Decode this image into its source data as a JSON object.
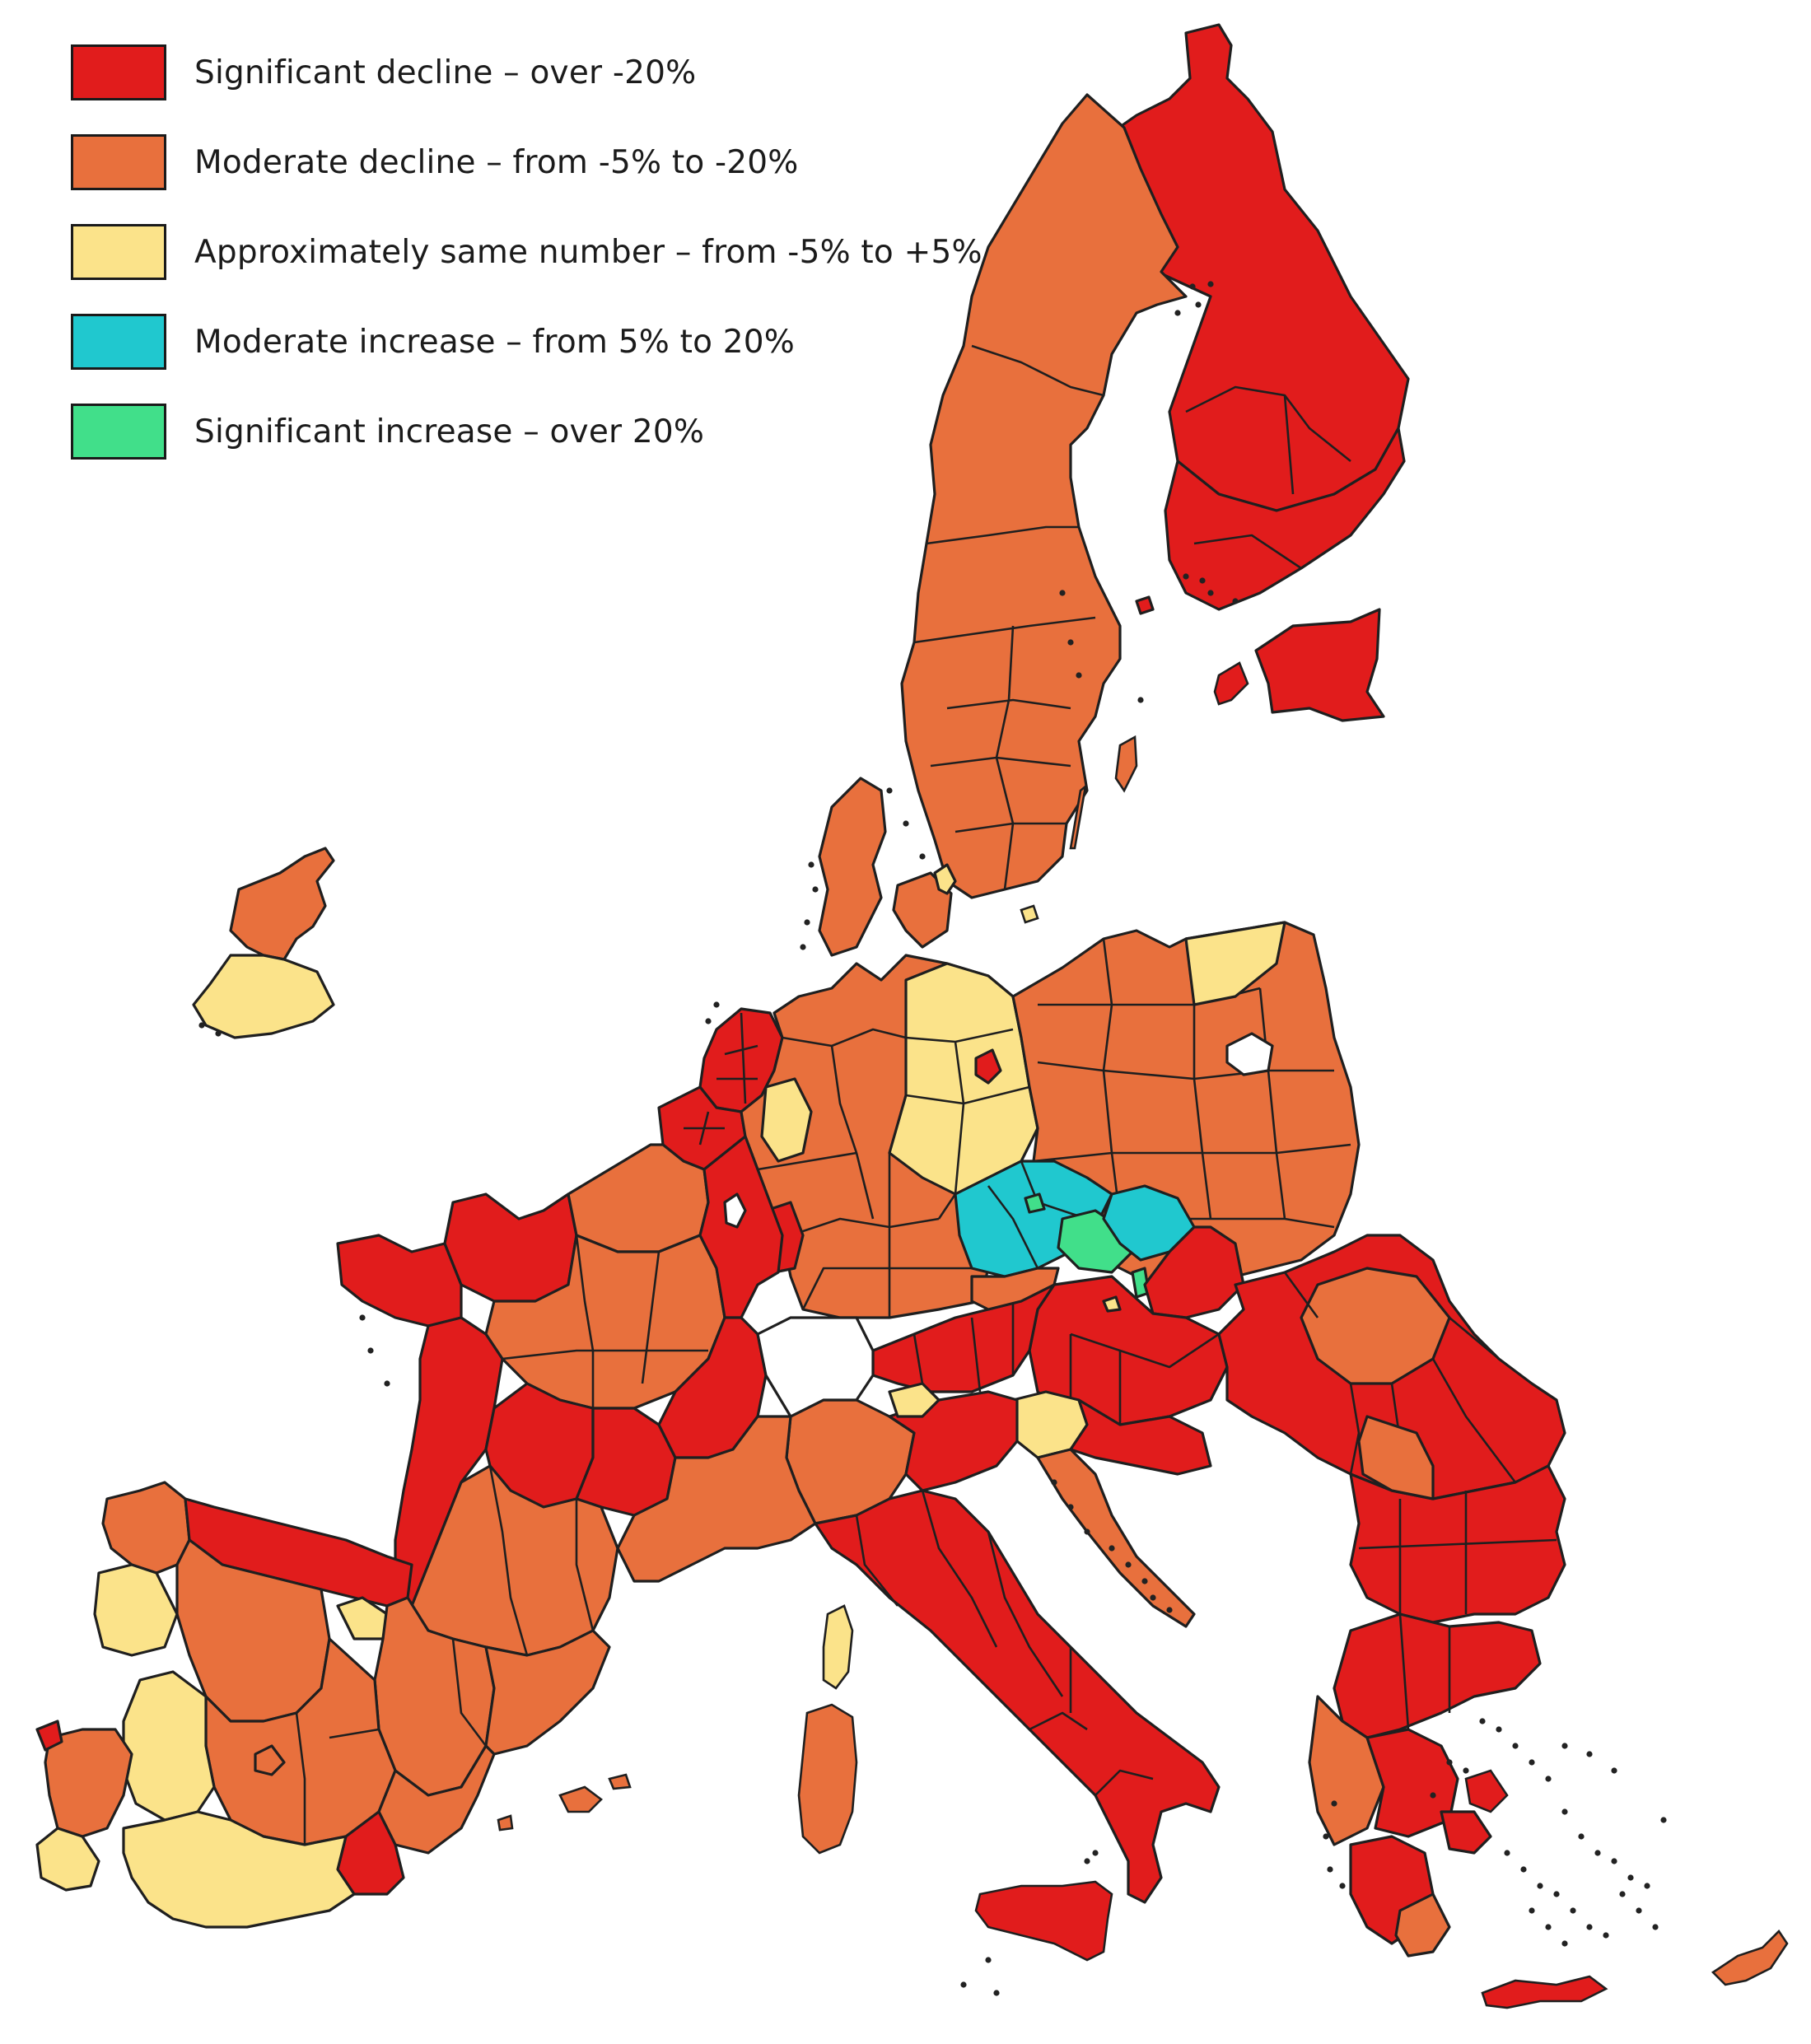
{
  "colors": {
    "significant_decline": "#e11c1c",
    "moderate_decline": "#e8703d",
    "approx_same": "#fbe38a",
    "moderate_increase": "#20c8cf",
    "significant_increase": "#41df8a",
    "border": "#1f1f1f"
  },
  "legend": {
    "items": [
      {
        "key": "significant_decline",
        "label": "Significant decline – over -20%",
        "color": "#e11c1c"
      },
      {
        "key": "moderate_decline",
        "label": "Moderate decline – from -5% to -20%",
        "color": "#e8703d"
      },
      {
        "key": "approx_same",
        "label": "Approximately same number – from -5% to +5%",
        "color": "#fbe38a"
      },
      {
        "key": "moderate_increase",
        "label": "Moderate increase – from 5% to 20%",
        "color": "#20c8cf"
      },
      {
        "key": "significant_increase",
        "label": "Significant increase – over 20%",
        "color": "#41df8a"
      }
    ]
  },
  "map": {
    "type": "choropleth",
    "area": "European Union NUTS regions",
    "categories": [
      "significant_decline",
      "moderate_decline",
      "approx_same",
      "moderate_increase",
      "significant_increase"
    ]
  }
}
